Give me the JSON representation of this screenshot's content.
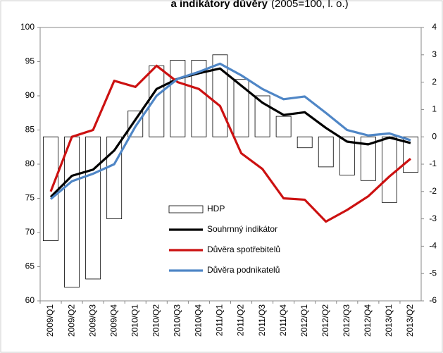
{
  "chart_data": {
    "type": "bar-line",
    "title": "a indikátory důvěry",
    "subtitle": "(2005=100, l. o.)",
    "categories": [
      "2009/Q1",
      "2009/Q2",
      "2009/Q3",
      "2009/Q4",
      "2010/Q1",
      "2010/Q2",
      "2010/Q3",
      "2010/Q4",
      "2011/Q1",
      "2011/Q2",
      "2011/Q3",
      "2011/Q4",
      "2012/Q1",
      "2012/Q2",
      "2012/Q3",
      "2012/Q4",
      "2013/Q1",
      "2013/Q2"
    ],
    "ylim": [
      60,
      100
    ],
    "yticks": [
      60,
      65,
      70,
      75,
      80,
      85,
      90,
      95,
      100
    ],
    "y2lim": [
      -6,
      4
    ],
    "y2ticks": [
      -6,
      -5,
      -4,
      -3,
      -2,
      -1,
      0,
      1,
      2,
      3,
      4
    ],
    "series": [
      {
        "name": "HDP",
        "kind": "bar",
        "axis": "y2",
        "color": "#ffffff",
        "values": [
          -3.8,
          -5.5,
          -5.2,
          -3.0,
          0.95,
          2.6,
          2.8,
          2.8,
          3.0,
          2.1,
          1.5,
          0.75,
          -0.4,
          -1.1,
          -1.4,
          -1.6,
          -2.4,
          -1.3
        ]
      },
      {
        "name": "Souhrnný indikátor",
        "kind": "line",
        "color": "#000000",
        "values": [
          75.2,
          78.3,
          79.2,
          82,
          86.5,
          91,
          92.5,
          93.3,
          94,
          91.5,
          89,
          87.2,
          87.6,
          85.3,
          83.3,
          82.9,
          83.9,
          83.1
        ]
      },
      {
        "name": "Důvěra spotřebitelů",
        "kind": "line",
        "color": "#cc1111",
        "values": [
          76,
          84,
          85,
          92.2,
          91.3,
          94.4,
          92,
          91,
          88.5,
          81.6,
          79.3,
          75,
          74.8,
          71.6,
          73.3,
          75.3,
          78.2,
          80.8
        ]
      },
      {
        "name": "Důvěra podnikatelů",
        "kind": "line",
        "color": "#4f86c6",
        "values": [
          74.9,
          77.5,
          78.6,
          80,
          85.5,
          90,
          92.5,
          93.5,
          94.7,
          93,
          91,
          89.5,
          89.9,
          87.5,
          85,
          84.2,
          84.5,
          83.5
        ]
      }
    ]
  }
}
